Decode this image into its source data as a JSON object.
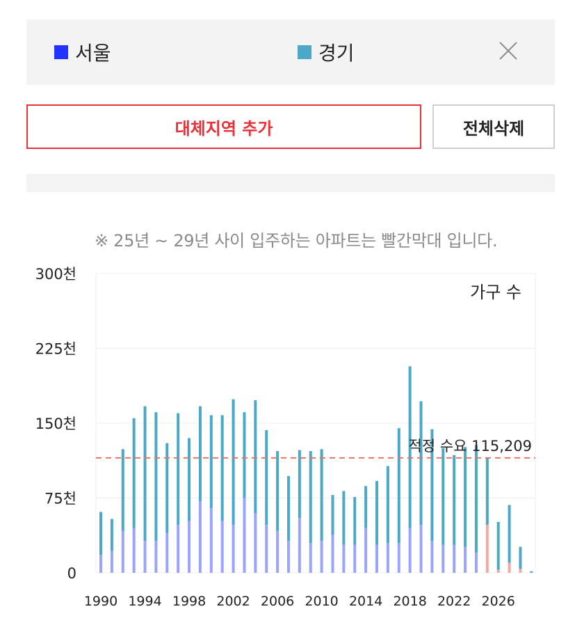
{
  "legend": {
    "items": [
      {
        "label": "서울",
        "color": "#2233ff"
      },
      {
        "label": "경기",
        "color": "#4ba8c7"
      }
    ],
    "close_icon": "close-icon"
  },
  "buttons": {
    "add_label": "대체지역 추가",
    "delete_label": "전체삭제"
  },
  "note": "※ 25년 ~ 29년 사이 입주하는 아파트는 빨간막대 입니다.",
  "chart_data": {
    "type": "bar",
    "stacked": true,
    "annotation_title": "가구 수",
    "y_ticks": [
      "0",
      "75천",
      "150천",
      "225천",
      "300천"
    ],
    "ylim": [
      0,
      300000
    ],
    "x_tick_labels": [
      "1990",
      "1994",
      "1998",
      "2002",
      "2006",
      "2010",
      "2014",
      "2018",
      "2022",
      "2026"
    ],
    "categories": [
      1990,
      1991,
      1992,
      1993,
      1994,
      1995,
      1996,
      1997,
      1998,
      1999,
      2000,
      2001,
      2002,
      2003,
      2004,
      2005,
      2006,
      2007,
      2008,
      2009,
      2010,
      2011,
      2012,
      2013,
      2014,
      2015,
      2016,
      2017,
      2018,
      2019,
      2020,
      2021,
      2022,
      2023,
      2024,
      2025,
      2026,
      2027,
      2028,
      2029
    ],
    "series": [
      {
        "name": "서울",
        "color": "#9aa4ff",
        "future_color": "#f4a9a0",
        "values": [
          18000,
          22000,
          42000,
          45000,
          32000,
          32000,
          40000,
          48000,
          52000,
          72000,
          65000,
          52000,
          48000,
          75000,
          60000,
          48000,
          42000,
          32000,
          55000,
          30000,
          32000,
          38000,
          28000,
          28000,
          45000,
          28000,
          30000,
          30000,
          45000,
          48000,
          32000,
          28000,
          28000,
          26000,
          20000,
          48000,
          3000,
          10000,
          4000,
          0
        ]
      },
      {
        "name": "경기",
        "color": "#4ba8c7",
        "future_color": "#4ba8c7",
        "values": [
          43000,
          32000,
          82000,
          110000,
          135000,
          129000,
          90000,
          112000,
          83000,
          95000,
          93000,
          106000,
          126000,
          86000,
          113000,
          95000,
          80000,
          65000,
          68000,
          92000,
          92000,
          40000,
          54000,
          48000,
          42000,
          64000,
          77000,
          115000,
          162000,
          124000,
          112000,
          97000,
          90000,
          100000,
          108000,
          67000,
          48000,
          58000,
          22000,
          1500
        ]
      }
    ],
    "future_from": 2025,
    "reference_line": {
      "value": 115209,
      "label": "적정 수요 115,209",
      "color": "#e8736b"
    },
    "grid": true
  }
}
